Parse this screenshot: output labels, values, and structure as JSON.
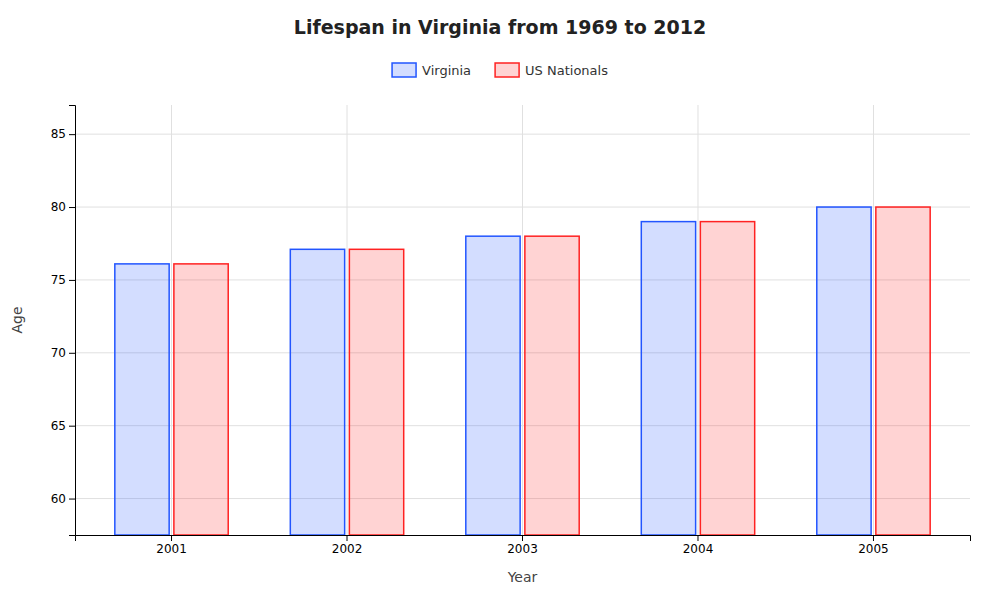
{
  "chart_data": {
    "type": "bar",
    "title": "Lifespan in Virginia from 1969 to 2012",
    "xlabel": "Year",
    "ylabel": "Age",
    "categories": [
      "2001",
      "2002",
      "2003",
      "2004",
      "2005"
    ],
    "series": [
      {
        "name": "Virginia",
        "color": "#2255ff",
        "values": [
          76.1,
          77.1,
          78.0,
          79.0,
          80.0
        ]
      },
      {
        "name": "US Nationals",
        "color": "#ff2222",
        "values": [
          76.1,
          77.1,
          78.0,
          79.0,
          80.0
        ]
      }
    ],
    "ylim": [
      57.5,
      87
    ],
    "yticks": [
      60,
      65,
      70,
      75,
      80,
      85
    ],
    "grid": true,
    "legend": "top"
  }
}
